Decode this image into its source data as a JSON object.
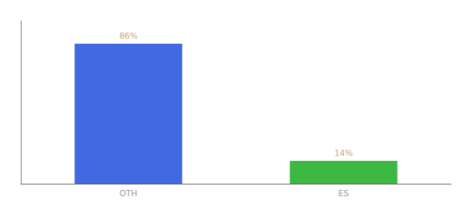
{
  "chart_data": {
    "type": "bar",
    "categories": [
      "OTH",
      "ES"
    ],
    "values": [
      86,
      14
    ],
    "value_labels": [
      "86%",
      "14%"
    ],
    "colors": [
      "#4169e1",
      "#3cb843"
    ],
    "ylim": [
      0,
      100
    ],
    "yticks": [],
    "grid": false,
    "data_labels": true,
    "tick_labels": "x"
  }
}
